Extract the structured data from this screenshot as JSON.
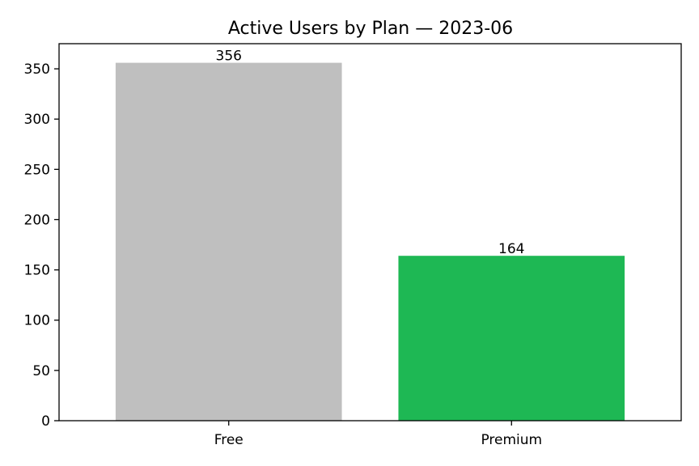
{
  "chart_data": {
    "type": "bar",
    "title": "Active Users by Plan — 2023-06",
    "xlabel": "",
    "ylabel": "",
    "categories": [
      "Free",
      "Premium"
    ],
    "values": [
      356,
      164
    ],
    "data_labels": [
      "356",
      "164"
    ],
    "colors": [
      "#bfbfbf",
      "#1eb854"
    ],
    "ylim": [
      0,
      375
    ],
    "yticks": [
      0,
      50,
      100,
      150,
      200,
      250,
      300,
      350
    ],
    "ytick_labels": [
      "0",
      "50",
      "100",
      "150",
      "200",
      "250",
      "300",
      "350"
    ],
    "grid": false,
    "legend": "none"
  }
}
